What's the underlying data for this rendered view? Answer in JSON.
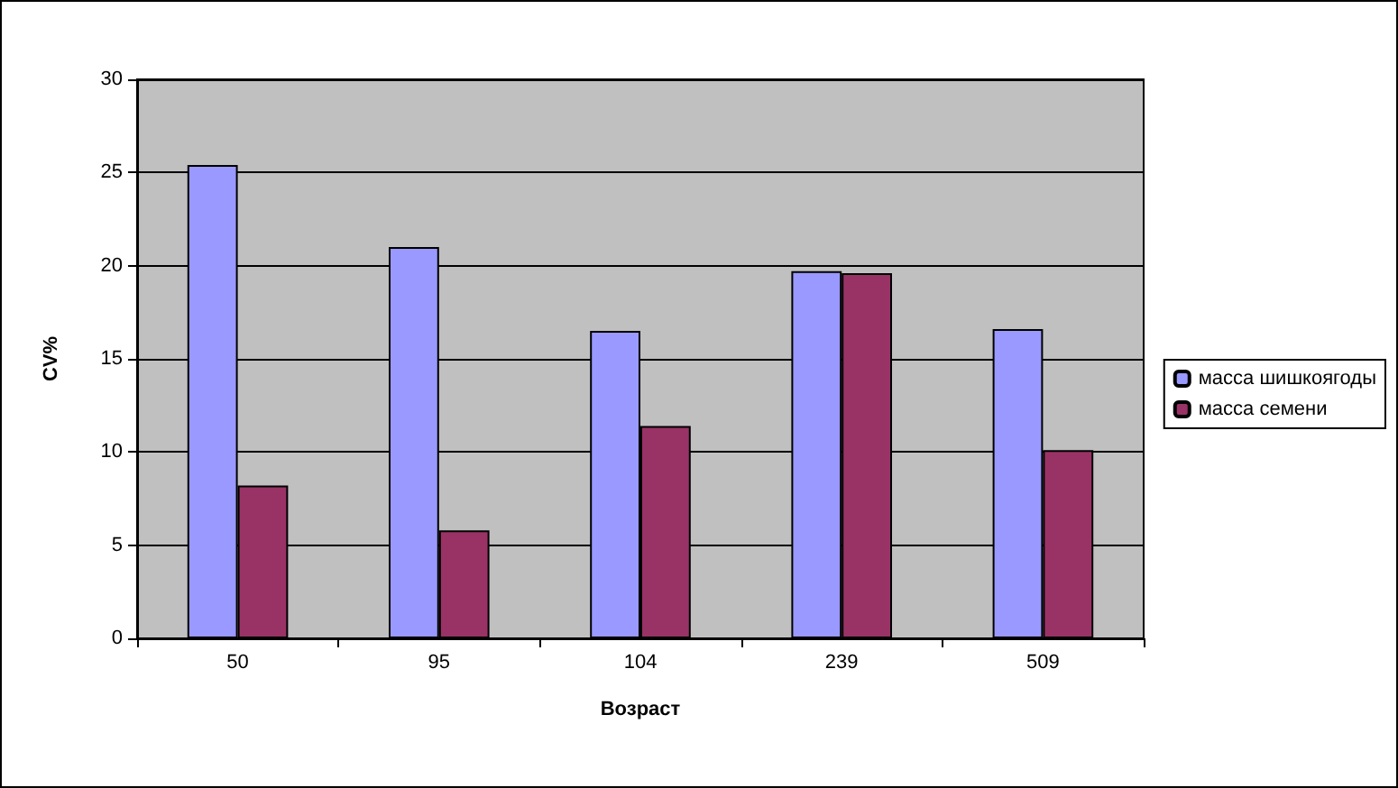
{
  "chart_data": {
    "type": "bar",
    "xlabel": "Возраст",
    "ylabel": "CV%",
    "categories": [
      "50",
      "95",
      "104",
      "239",
      "509"
    ],
    "series": [
      {
        "name": "масса шишкоягоды",
        "color": "#9999ff",
        "values": [
          25.4,
          21.0,
          16.5,
          19.7,
          16.6
        ]
      },
      {
        "name": "масса семени",
        "color": "#993366",
        "values": [
          8.2,
          5.8,
          11.4,
          19.6,
          10.1
        ]
      }
    ],
    "ylim": [
      0,
      30
    ],
    "yticks": [
      0,
      5,
      10,
      15,
      20,
      25,
      30
    ],
    "grid": "y",
    "legend": "right"
  }
}
